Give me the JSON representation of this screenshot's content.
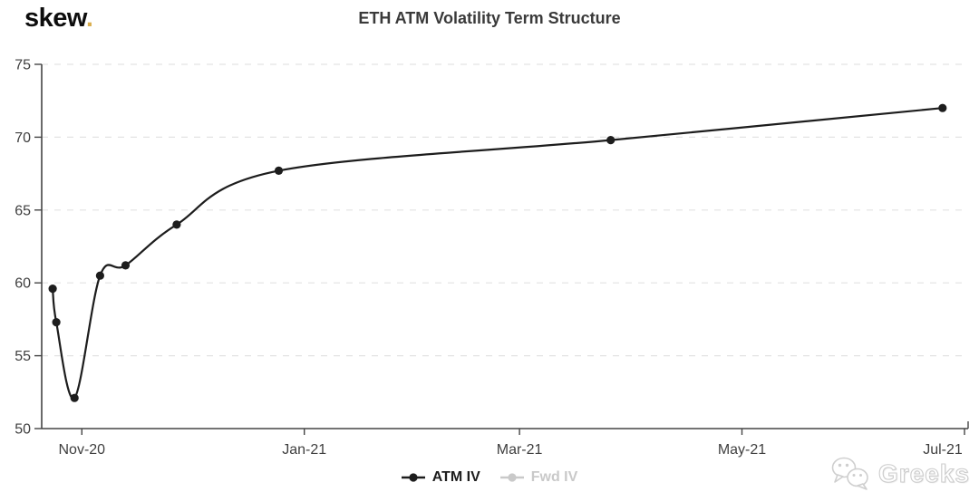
{
  "logo": {
    "text": "skew",
    "dot": ".",
    "dot_color": "#d9ae4e"
  },
  "header": {
    "title": "ETH ATM Volatility Term Structure"
  },
  "chart_data": {
    "type": "line",
    "title": "ETH ATM Volatility Term Structure",
    "x_type": "time",
    "x_domain": [
      "2020-10-21",
      "2021-07-02"
    ],
    "ylim": [
      50,
      75
    ],
    "y_ticks": [
      50,
      55,
      60,
      65,
      70,
      75
    ],
    "x_ticks": [
      {
        "label": "Nov-20",
        "date": "2020-11-01"
      },
      {
        "label": "Jan-21",
        "date": "2021-01-01"
      },
      {
        "label": "Mar-21",
        "date": "2021-03-01"
      },
      {
        "label": "May-21",
        "date": "2021-05-01"
      },
      {
        "label": "Jul-21",
        "date": "2021-07-01"
      }
    ],
    "grid": "horizontal-dashed",
    "legend_position": "bottom-center",
    "series": [
      {
        "name": "ATM IV",
        "color": "#1d1d1d",
        "visible": true,
        "points": [
          {
            "date": "2020-10-24",
            "value": 59.6
          },
          {
            "date": "2020-10-25",
            "value": 57.3
          },
          {
            "date": "2020-10-30",
            "value": 52.1
          },
          {
            "date": "2020-11-06",
            "value": 60.5
          },
          {
            "date": "2020-11-13",
            "value": 61.2
          },
          {
            "date": "2020-11-27",
            "value": 64.0
          },
          {
            "date": "2020-12-25",
            "value": 67.7
          },
          {
            "date": "2021-03-26",
            "value": 69.8
          },
          {
            "date": "2021-06-25",
            "value": 72.0
          }
        ]
      },
      {
        "name": "Fwd IV",
        "color": "#c9c9c9",
        "visible": false,
        "points": []
      }
    ]
  },
  "legend": {
    "items": [
      {
        "label": "ATM IV",
        "color": "#1d1d1d"
      },
      {
        "label": "Fwd IV",
        "color": "#c9c9c9"
      }
    ]
  },
  "watermark": {
    "icon": "wechat-icon",
    "text": "Greeks"
  },
  "colors": {
    "axis": "#454545",
    "grid": "#e3e3e3",
    "title": "#3a3a3a",
    "background": "#ffffff"
  }
}
